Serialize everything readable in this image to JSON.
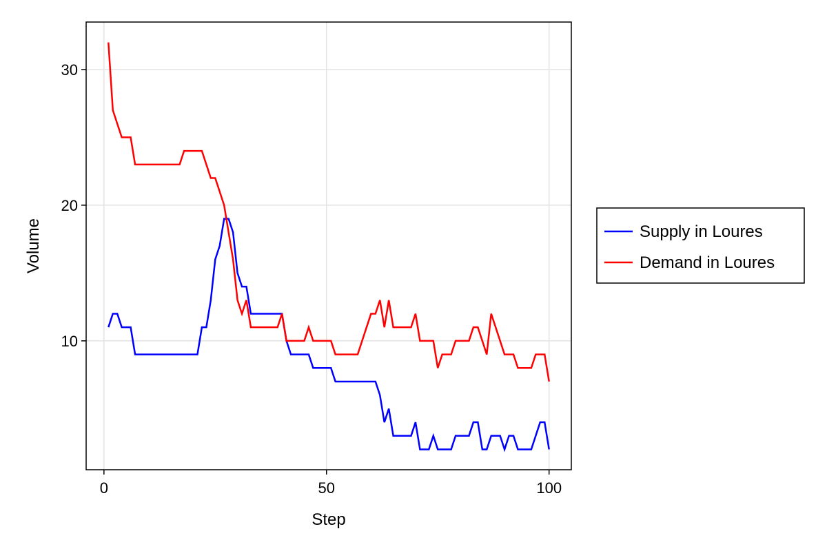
{
  "chart_data": {
    "type": "line",
    "title": "",
    "xlabel": "Step",
    "ylabel": "Volume",
    "xlim": [
      -4,
      105
    ],
    "ylim": [
      0.5,
      33.5
    ],
    "xticks": [
      0,
      50,
      100
    ],
    "yticks": [
      10,
      20,
      30
    ],
    "grid": true,
    "legend_position": "right",
    "x": [
      1,
      2,
      3,
      4,
      5,
      6,
      7,
      8,
      9,
      10,
      11,
      12,
      13,
      14,
      15,
      16,
      17,
      18,
      19,
      20,
      21,
      22,
      23,
      24,
      25,
      26,
      27,
      28,
      29,
      30,
      31,
      32,
      33,
      34,
      35,
      36,
      37,
      38,
      39,
      40,
      41,
      42,
      43,
      44,
      45,
      46,
      47,
      48,
      49,
      50,
      51,
      52,
      53,
      54,
      55,
      56,
      57,
      58,
      59,
      60,
      61,
      62,
      63,
      64,
      65,
      66,
      67,
      68,
      69,
      70,
      71,
      72,
      73,
      74,
      75,
      76,
      77,
      78,
      79,
      80,
      81,
      82,
      83,
      84,
      85,
      86,
      87,
      88,
      89,
      90,
      91,
      92,
      93,
      94,
      95,
      96,
      97,
      98,
      99,
      100
    ],
    "series": [
      {
        "name": "Supply in Loures",
        "color": "#0000ff",
        "values": [
          11,
          12,
          12,
          11,
          11,
          11,
          9,
          9,
          9,
          9,
          9,
          9,
          9,
          9,
          9,
          9,
          9,
          9,
          9,
          9,
          9,
          11,
          11,
          13,
          16,
          17,
          19,
          19,
          18,
          15,
          14,
          14,
          12,
          12,
          12,
          12,
          12,
          12,
          12,
          12,
          10,
          9,
          9,
          9,
          9,
          9,
          8,
          8,
          8,
          8,
          8,
          7,
          7,
          7,
          7,
          7,
          7,
          7,
          7,
          7,
          7,
          6,
          4,
          5,
          3,
          3,
          3,
          3,
          3,
          4,
          2,
          2,
          2,
          3,
          2,
          2,
          2,
          2,
          3,
          3,
          3,
          3,
          4,
          4,
          2,
          2,
          3,
          3,
          3,
          2,
          3,
          3,
          2,
          2,
          2,
          2,
          3,
          4,
          4,
          2
        ]
      },
      {
        "name": "Demand in Loures",
        "color": "#ff0000",
        "values": [
          32,
          27,
          26,
          25,
          25,
          25,
          23,
          23,
          23,
          23,
          23,
          23,
          23,
          23,
          23,
          23,
          23,
          24,
          24,
          24,
          24,
          24,
          23,
          22,
          22,
          21,
          20,
          18,
          16,
          13,
          12,
          13,
          11,
          11,
          11,
          11,
          11,
          11,
          11,
          12,
          10,
          10,
          10,
          10,
          10,
          11,
          10,
          10,
          10,
          10,
          10,
          9,
          9,
          9,
          9,
          9,
          9,
          10,
          11,
          12,
          12,
          13,
          11,
          13,
          11,
          11,
          11,
          11,
          11,
          12,
          10,
          10,
          10,
          10,
          8,
          9,
          9,
          9,
          10,
          10,
          10,
          10,
          11,
          11,
          10,
          9,
          12,
          11,
          10,
          9,
          9,
          9,
          8,
          8,
          8,
          8,
          9,
          9,
          9,
          7
        ]
      }
    ]
  }
}
